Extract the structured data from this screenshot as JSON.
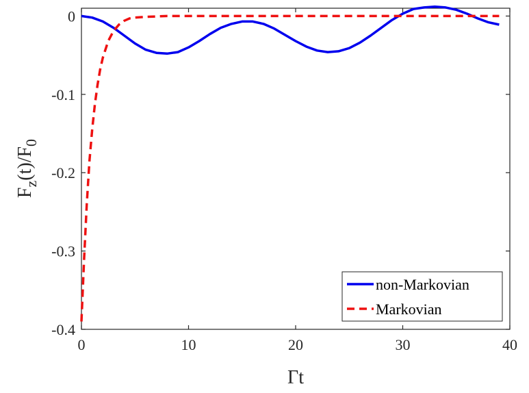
{
  "chart_data": {
    "type": "line",
    "xlabel": {
      "main": "Γt"
    },
    "ylabel": {
      "main": "F",
      "sub1": "z",
      "mid": "(t)/F",
      "sub2": "0"
    },
    "xlim": [
      0,
      40
    ],
    "ylim": [
      -0.4,
      0.01
    ],
    "x_ticks": [
      "0",
      "10",
      "20",
      "30",
      "40"
    ],
    "y_ticks": [
      "0",
      "-0.1",
      "-0.2",
      "-0.3",
      "-0.4"
    ],
    "x_tick_values": [
      0,
      10,
      20,
      30,
      40
    ],
    "y_tick_values": [
      0,
      -0.1,
      -0.2,
      -0.3,
      -0.4
    ],
    "grid": false,
    "legend_position": "bottom-right",
    "series": [
      {
        "name": "non-Markovian",
        "color": "#0000ee",
        "style": "solid",
        "x": [
          0,
          1,
          2,
          3,
          4,
          5,
          6,
          7,
          8,
          9,
          10,
          11,
          12,
          13,
          14,
          15,
          16,
          17,
          18,
          19,
          20,
          21,
          22,
          23,
          24,
          25,
          26,
          27,
          28,
          29,
          30,
          31,
          32,
          33,
          34,
          35,
          36,
          37,
          38,
          39
        ],
        "y": [
          0,
          -0.002,
          -0.007,
          -0.015,
          -0.025,
          -0.035,
          -0.043,
          -0.047,
          -0.048,
          -0.046,
          -0.04,
          -0.032,
          -0.023,
          -0.015,
          -0.01,
          -0.007,
          -0.007,
          -0.01,
          -0.016,
          -0.024,
          -0.032,
          -0.039,
          -0.044,
          -0.046,
          -0.045,
          -0.041,
          -0.034,
          -0.025,
          -0.015,
          -0.005,
          0.003,
          0.009,
          0.011,
          0.012,
          0.011,
          0.008,
          0.003,
          -0.003,
          -0.008,
          -0.011
        ]
      },
      {
        "name": "Markovian",
        "color": "#ee1111",
        "style": "dashed",
        "x": [
          0,
          0.25,
          0.5,
          0.75,
          1,
          1.25,
          1.5,
          1.75,
          2,
          2.5,
          3,
          3.5,
          4,
          4.5,
          5,
          6,
          8,
          10,
          15,
          20,
          25,
          30,
          35,
          39
        ],
        "y": [
          -0.39,
          -0.31,
          -0.24,
          -0.185,
          -0.145,
          -0.113,
          -0.088,
          -0.068,
          -0.053,
          -0.032,
          -0.019,
          -0.011,
          -0.006,
          -0.003,
          -0.002,
          -0.001,
          0,
          0,
          0,
          0,
          0,
          0,
          0,
          0
        ]
      }
    ]
  }
}
